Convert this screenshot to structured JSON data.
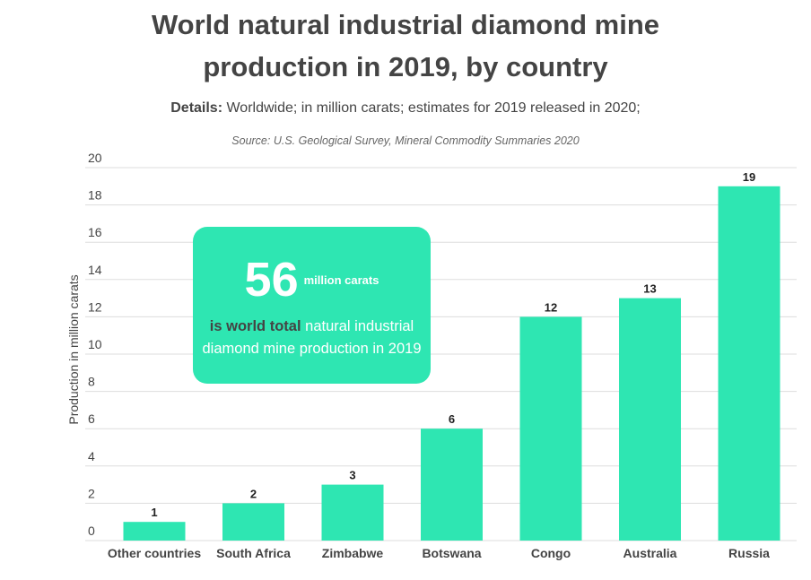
{
  "title_line1": "World natural industrial diamond mine",
  "title_line2": "production in 2019, by country",
  "details_label": "Details:",
  "details_text": "Worldwide; in million carats; estimates for 2019 released in 2020;",
  "source": "Source: U.S. Geological Survey, Mineral Commodity Summaries 2020",
  "callout": {
    "number": "56",
    "unit": "million carats",
    "strong_text": "is world total",
    "rest_text": "natural industrial diamond mine production in 2019"
  },
  "colors": {
    "bar": "#2ee6b2",
    "text": "#444444",
    "grid": "#dddddd"
  },
  "chart_data": {
    "type": "bar",
    "categories": [
      "Other countries",
      "South Africa",
      "Zimbabwe",
      "Botswana",
      "Congo",
      "Australia",
      "Russia"
    ],
    "values": [
      1,
      2,
      3,
      6,
      12,
      13,
      19
    ],
    "data_labels": [
      "1",
      "2",
      "3",
      "6",
      "12",
      "13",
      "19"
    ],
    "ylabel": "Production in million carats",
    "ylim": [
      0,
      20
    ],
    "yticks": [
      0,
      2,
      4,
      6,
      8,
      10,
      12,
      14,
      16,
      18,
      20
    ],
    "grid": true
  }
}
